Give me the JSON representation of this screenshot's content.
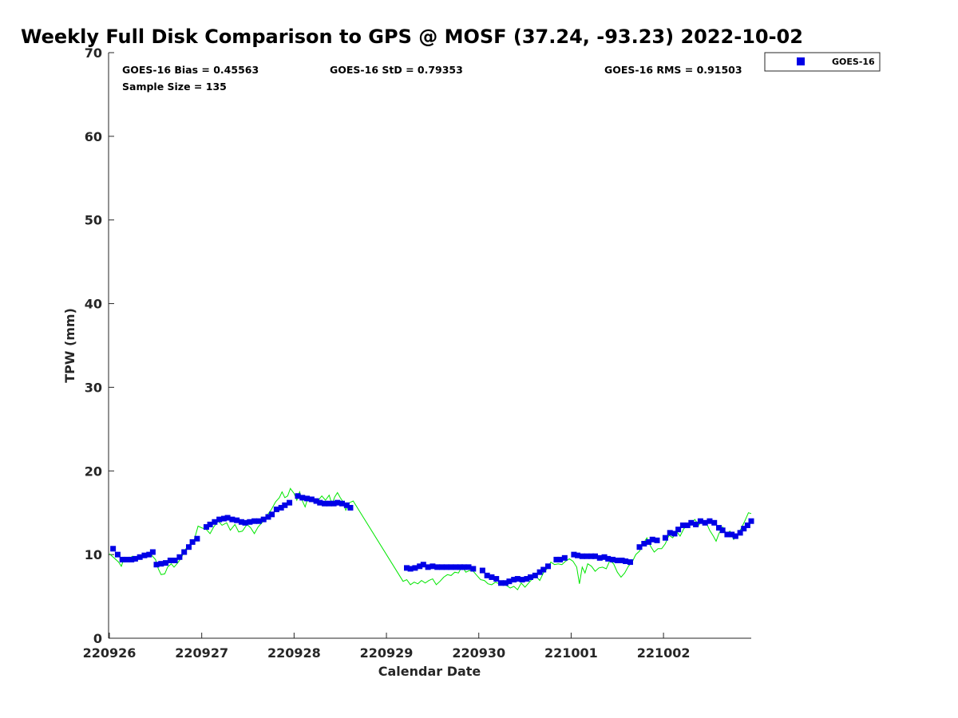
{
  "chart_data": {
    "type": "scatter",
    "title": "Weekly Full Disk Comparison to GPS @ MOSF (37.24, -93.23) 2022-10-02",
    "xlabel": "Calendar Date",
    "ylabel": "TPW (mm)",
    "xlim": [
      0,
      6.95
    ],
    "ylim": [
      0,
      70
    ],
    "x_ticks": [
      0,
      1,
      2,
      3,
      4,
      5,
      6
    ],
    "x_tick_labels": [
      "220926",
      "220927",
      "220928",
      "220929",
      "220930",
      "221001",
      "221002"
    ],
    "y_ticks": [
      0,
      10,
      20,
      30,
      40,
      50,
      60,
      70
    ],
    "y_tick_labels": [
      "0",
      "10",
      "20",
      "30",
      "40",
      "50",
      "60",
      "70"
    ],
    "grid": false,
    "legend_position": "top-right",
    "stats": {
      "bias": "GOES-16 Bias = 0.45563",
      "std": "GOES-16 StD = 0.79353",
      "rms": "GOES-16 RMS = 0.91503",
      "sample": "Sample Size = 135"
    },
    "series": [
      {
        "name": "GOES-16",
        "kind": "markers",
        "color": "#0000e6",
        "points": [
          [
            0.04,
            10.7
          ],
          [
            0.09,
            10.0
          ],
          [
            0.14,
            9.4
          ],
          [
            0.19,
            9.4
          ],
          [
            0.24,
            9.4
          ],
          [
            0.28,
            9.5
          ],
          [
            0.33,
            9.7
          ],
          [
            0.38,
            9.9
          ],
          [
            0.43,
            10.0
          ],
          [
            0.47,
            10.3
          ],
          [
            0.51,
            8.8
          ],
          [
            0.56,
            8.9
          ],
          [
            0.61,
            9.0
          ],
          [
            0.66,
            9.3
          ],
          [
            0.71,
            9.3
          ],
          [
            0.76,
            9.7
          ],
          [
            0.81,
            10.3
          ],
          [
            0.86,
            10.9
          ],
          [
            0.9,
            11.5
          ],
          [
            0.95,
            11.9
          ],
          [
            1.05,
            13.3
          ],
          [
            1.09,
            13.6
          ],
          [
            1.14,
            13.9
          ],
          [
            1.19,
            14.2
          ],
          [
            1.24,
            14.3
          ],
          [
            1.28,
            14.4
          ],
          [
            1.33,
            14.2
          ],
          [
            1.38,
            14.1
          ],
          [
            1.43,
            13.9
          ],
          [
            1.47,
            13.8
          ],
          [
            1.52,
            13.9
          ],
          [
            1.57,
            14.0
          ],
          [
            1.62,
            14.0
          ],
          [
            1.67,
            14.2
          ],
          [
            1.72,
            14.5
          ],
          [
            1.76,
            14.8
          ],
          [
            1.81,
            15.4
          ],
          [
            1.86,
            15.6
          ],
          [
            1.9,
            15.9
          ],
          [
            1.95,
            16.2
          ],
          [
            2.04,
            17.0
          ],
          [
            2.09,
            16.8
          ],
          [
            2.14,
            16.7
          ],
          [
            2.19,
            16.6
          ],
          [
            2.24,
            16.4
          ],
          [
            2.28,
            16.2
          ],
          [
            2.33,
            16.1
          ],
          [
            2.38,
            16.1
          ],
          [
            2.43,
            16.1
          ],
          [
            2.47,
            16.2
          ],
          [
            2.52,
            16.1
          ],
          [
            2.57,
            15.9
          ],
          [
            2.61,
            15.6
          ],
          [
            3.22,
            8.4
          ],
          [
            3.26,
            8.3
          ],
          [
            3.31,
            8.4
          ],
          [
            3.36,
            8.6
          ],
          [
            3.4,
            8.8
          ],
          [
            3.45,
            8.5
          ],
          [
            3.5,
            8.6
          ],
          [
            3.55,
            8.5
          ],
          [
            3.6,
            8.5
          ],
          [
            3.65,
            8.5
          ],
          [
            3.7,
            8.5
          ],
          [
            3.75,
            8.5
          ],
          [
            3.8,
            8.5
          ],
          [
            3.84,
            8.5
          ],
          [
            3.89,
            8.5
          ],
          [
            3.94,
            8.3
          ],
          [
            4.04,
            8.1
          ],
          [
            4.09,
            7.5
          ],
          [
            4.14,
            7.3
          ],
          [
            4.19,
            7.1
          ],
          [
            4.24,
            6.6
          ],
          [
            4.29,
            6.6
          ],
          [
            4.33,
            6.8
          ],
          [
            4.38,
            7.0
          ],
          [
            4.42,
            7.1
          ],
          [
            4.47,
            7.0
          ],
          [
            4.52,
            7.1
          ],
          [
            4.56,
            7.3
          ],
          [
            4.61,
            7.5
          ],
          [
            4.66,
            7.9
          ],
          [
            4.7,
            8.2
          ],
          [
            4.75,
            8.6
          ],
          [
            4.84,
            9.4
          ],
          [
            4.88,
            9.4
          ],
          [
            4.93,
            9.6
          ],
          [
            5.03,
            10.0
          ],
          [
            5.07,
            9.9
          ],
          [
            5.12,
            9.8
          ],
          [
            5.17,
            9.8
          ],
          [
            5.22,
            9.8
          ],
          [
            5.26,
            9.8
          ],
          [
            5.31,
            9.6
          ],
          [
            5.36,
            9.7
          ],
          [
            5.4,
            9.5
          ],
          [
            5.45,
            9.4
          ],
          [
            5.5,
            9.3
          ],
          [
            5.55,
            9.3
          ],
          [
            5.59,
            9.2
          ],
          [
            5.64,
            9.1
          ],
          [
            5.74,
            10.9
          ],
          [
            5.79,
            11.3
          ],
          [
            5.84,
            11.5
          ],
          [
            5.88,
            11.8
          ],
          [
            5.93,
            11.7
          ],
          [
            6.02,
            12.0
          ],
          [
            6.07,
            12.6
          ],
          [
            6.12,
            12.5
          ],
          [
            6.16,
            13.0
          ],
          [
            6.21,
            13.5
          ],
          [
            6.26,
            13.5
          ],
          [
            6.3,
            13.8
          ],
          [
            6.35,
            13.6
          ],
          [
            6.4,
            14.0
          ],
          [
            6.45,
            13.8
          ],
          [
            6.5,
            14.0
          ],
          [
            6.55,
            13.8
          ],
          [
            6.6,
            13.2
          ],
          [
            6.64,
            12.9
          ],
          [
            6.69,
            12.4
          ],
          [
            6.74,
            12.4
          ],
          [
            6.78,
            12.2
          ],
          [
            6.83,
            12.6
          ],
          [
            6.87,
            13.1
          ],
          [
            6.91,
            13.5
          ],
          [
            6.95,
            14.0
          ]
        ]
      },
      {
        "name": "",
        "kind": "line",
        "color": "#00e600",
        "points": [
          [
            0.0,
            10.1
          ],
          [
            0.05,
            9.6
          ],
          [
            0.1,
            9.1
          ],
          [
            0.13,
            8.6
          ],
          [
            0.16,
            9.6
          ],
          [
            0.2,
            9.4
          ],
          [
            0.25,
            9.8
          ],
          [
            0.3,
            9.6
          ],
          [
            0.35,
            9.6
          ],
          [
            0.4,
            9.8
          ],
          [
            0.46,
            9.9
          ],
          [
            0.5,
            9.4
          ],
          [
            0.53,
            8.3
          ],
          [
            0.56,
            7.6
          ],
          [
            0.6,
            7.7
          ],
          [
            0.63,
            8.5
          ],
          [
            0.67,
            8.9
          ],
          [
            0.7,
            8.5
          ],
          [
            0.74,
            9.0
          ],
          [
            0.78,
            9.6
          ],
          [
            0.82,
            10.6
          ],
          [
            0.87,
            11.2
          ],
          [
            0.92,
            11.8
          ],
          [
            0.96,
            13.4
          ],
          [
            1.0,
            13.2
          ],
          [
            1.05,
            13.0
          ],
          [
            1.09,
            12.5
          ],
          [
            1.13,
            13.3
          ],
          [
            1.18,
            14.0
          ],
          [
            1.22,
            13.5
          ],
          [
            1.27,
            13.8
          ],
          [
            1.31,
            12.9
          ],
          [
            1.36,
            13.6
          ],
          [
            1.4,
            12.7
          ],
          [
            1.44,
            12.8
          ],
          [
            1.49,
            13.6
          ],
          [
            1.53,
            13.2
          ],
          [
            1.57,
            12.5
          ],
          [
            1.61,
            13.3
          ],
          [
            1.66,
            13.9
          ],
          [
            1.7,
            14.6
          ],
          [
            1.75,
            15.3
          ],
          [
            1.8,
            16.3
          ],
          [
            1.84,
            16.8
          ],
          [
            1.87,
            17.5
          ],
          [
            1.9,
            16.8
          ],
          [
            1.93,
            17.0
          ],
          [
            1.96,
            17.9
          ],
          [
            2.0,
            17.3
          ],
          [
            2.03,
            16.5
          ],
          [
            2.06,
            17.5
          ],
          [
            2.09,
            16.4
          ],
          [
            2.12,
            15.7
          ],
          [
            2.15,
            16.8
          ],
          [
            2.19,
            16.4
          ],
          [
            2.23,
            16.2
          ],
          [
            2.27,
            16.6
          ],
          [
            2.3,
            17.0
          ],
          [
            2.34,
            16.5
          ],
          [
            2.38,
            17.1
          ],
          [
            2.41,
            16.0
          ],
          [
            2.44,
            16.9
          ],
          [
            2.47,
            17.4
          ],
          [
            2.5,
            16.8
          ],
          [
            2.53,
            16.3
          ],
          [
            2.56,
            15.3
          ],
          [
            2.6,
            16.2
          ],
          [
            2.64,
            16.4
          ],
          [
            3.18,
            6.8
          ],
          [
            3.22,
            7.0
          ],
          [
            3.26,
            6.4
          ],
          [
            3.3,
            6.7
          ],
          [
            3.34,
            6.5
          ],
          [
            3.38,
            6.9
          ],
          [
            3.42,
            6.6
          ],
          [
            3.46,
            6.9
          ],
          [
            3.5,
            7.1
          ],
          [
            3.54,
            6.4
          ],
          [
            3.58,
            6.8
          ],
          [
            3.62,
            7.3
          ],
          [
            3.66,
            7.6
          ],
          [
            3.7,
            7.5
          ],
          [
            3.74,
            7.9
          ],
          [
            3.78,
            7.8
          ],
          [
            3.82,
            8.6
          ],
          [
            3.86,
            7.9
          ],
          [
            3.9,
            8.1
          ],
          [
            3.94,
            8.0
          ],
          [
            3.98,
            7.5
          ],
          [
            4.02,
            7.0
          ],
          [
            4.06,
            6.9
          ],
          [
            4.1,
            6.5
          ],
          [
            4.14,
            6.4
          ],
          [
            4.18,
            6.7
          ],
          [
            4.22,
            6.5
          ],
          [
            4.26,
            6.5
          ],
          [
            4.3,
            6.3
          ],
          [
            4.34,
            6.0
          ],
          [
            4.38,
            6.2
          ],
          [
            4.42,
            5.8
          ],
          [
            4.46,
            6.6
          ],
          [
            4.5,
            6.1
          ],
          [
            4.54,
            6.6
          ],
          [
            4.58,
            7.1
          ],
          [
            4.62,
            7.4
          ],
          [
            4.66,
            6.9
          ],
          [
            4.7,
            7.8
          ],
          [
            4.74,
            8.3
          ],
          [
            4.78,
            9.1
          ],
          [
            4.82,
            8.8
          ],
          [
            4.86,
            8.9
          ],
          [
            4.9,
            8.8
          ],
          [
            4.94,
            9.2
          ],
          [
            4.98,
            9.5
          ],
          [
            5.02,
            9.2
          ],
          [
            5.06,
            8.5
          ],
          [
            5.09,
            6.5
          ],
          [
            5.12,
            8.5
          ],
          [
            5.15,
            7.8
          ],
          [
            5.18,
            8.9
          ],
          [
            5.22,
            8.6
          ],
          [
            5.26,
            8.0
          ],
          [
            5.3,
            8.4
          ],
          [
            5.34,
            8.5
          ],
          [
            5.38,
            8.3
          ],
          [
            5.42,
            9.3
          ],
          [
            5.46,
            8.9
          ],
          [
            5.5,
            7.9
          ],
          [
            5.54,
            7.3
          ],
          [
            5.58,
            7.8
          ],
          [
            5.62,
            8.6
          ],
          [
            5.66,
            9.1
          ],
          [
            5.7,
            10.0
          ],
          [
            5.74,
            10.4
          ],
          [
            5.78,
            11.3
          ],
          [
            5.82,
            12.0
          ],
          [
            5.86,
            11.0
          ],
          [
            5.9,
            10.3
          ],
          [
            5.94,
            10.7
          ],
          [
            5.98,
            10.7
          ],
          [
            6.02,
            11.3
          ],
          [
            6.06,
            12.3
          ],
          [
            6.1,
            12.0
          ],
          [
            6.14,
            12.8
          ],
          [
            6.18,
            12.2
          ],
          [
            6.22,
            13.1
          ],
          [
            6.26,
            13.5
          ],
          [
            6.3,
            13.7
          ],
          [
            6.34,
            14.2
          ],
          [
            6.38,
            13.5
          ],
          [
            6.42,
            14.1
          ],
          [
            6.46,
            13.9
          ],
          [
            6.5,
            12.9
          ],
          [
            6.54,
            12.2
          ],
          [
            6.57,
            11.6
          ],
          [
            6.6,
            12.5
          ],
          [
            6.64,
            13.3
          ],
          [
            6.68,
            12.5
          ],
          [
            6.72,
            12.8
          ],
          [
            6.76,
            11.8
          ],
          [
            6.8,
            12.4
          ],
          [
            6.84,
            13.1
          ],
          [
            6.88,
            14.0
          ],
          [
            6.92,
            15.0
          ],
          [
            6.95,
            14.9
          ]
        ]
      }
    ]
  }
}
